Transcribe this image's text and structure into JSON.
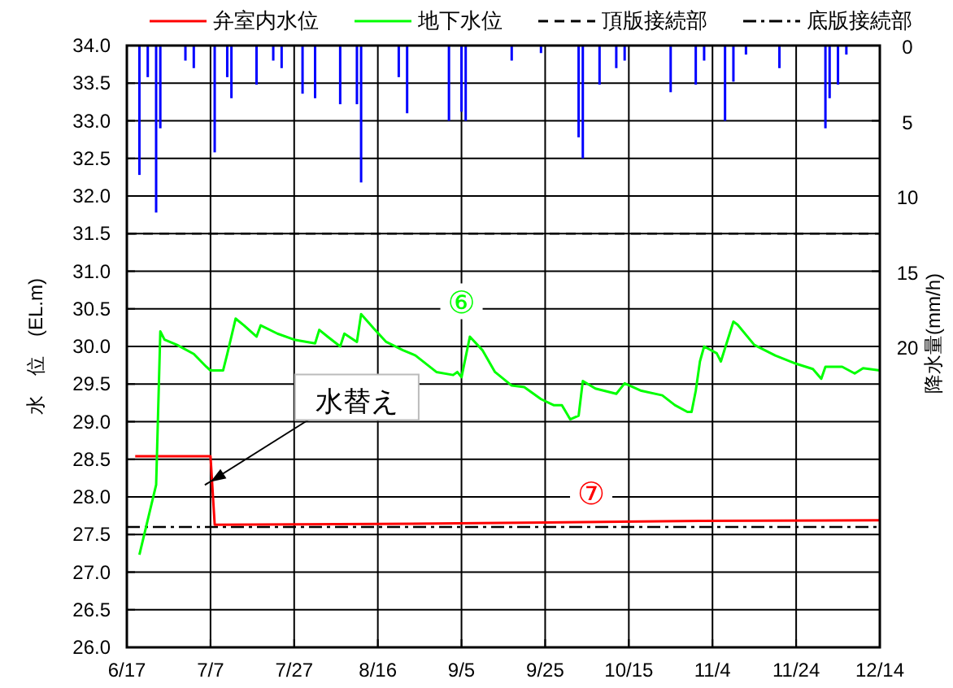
{
  "chart_data": {
    "type": "line",
    "legend": "top",
    "grid": true,
    "ylabel": "水　位　(EL.m)",
    "y2label": "降水量(mm/h)",
    "xlim": [
      "--06-17",
      "--12-14"
    ],
    "xticks": [
      {
        "value": "--06-17",
        "label": "6/17"
      },
      {
        "value": "--07-07",
        "label": "7/7"
      },
      {
        "value": "--07-27",
        "label": "7/27"
      },
      {
        "value": "--08-16",
        "label": "8/16"
      },
      {
        "value": "--09-05",
        "label": "9/5"
      },
      {
        "value": "--09-25",
        "label": "9/25"
      },
      {
        "value": "--10-15",
        "label": "10/15"
      },
      {
        "value": "--11-04",
        "label": "11/4"
      },
      {
        "value": "--11-24",
        "label": "11/24"
      },
      {
        "value": "--12-14",
        "label": "12/14"
      }
    ],
    "ylim": [
      26,
      34
    ],
    "yticks": [
      {
        "value": 26,
        "label": "26.0"
      },
      {
        "value": 26.5,
        "label": "26.5"
      },
      {
        "value": 27,
        "label": "27.0"
      },
      {
        "value": 27.5,
        "label": "27.5"
      },
      {
        "value": 28,
        "label": "28.0"
      },
      {
        "value": 28.5,
        "label": "28.5"
      },
      {
        "value": 29,
        "label": "29.0"
      },
      {
        "value": 29.5,
        "label": "29.5"
      },
      {
        "value": 30,
        "label": "30.0"
      },
      {
        "value": 30.5,
        "label": "30.5"
      },
      {
        "value": 31,
        "label": "31.0"
      },
      {
        "value": 31.5,
        "label": "31.5"
      },
      {
        "value": 32,
        "label": "32.0"
      },
      {
        "value": 32.5,
        "label": "32.5"
      },
      {
        "value": 33,
        "label": "33.0"
      },
      {
        "value": 33.5,
        "label": "33.5"
      },
      {
        "value": 34,
        "label": "34.0"
      }
    ],
    "y2lim": [
      40,
      0
    ],
    "y2ticks": [
      0,
      5,
      10,
      15,
      20
    ],
    "series": [
      {
        "name": "弁室内水位",
        "color": "#ff0000",
        "line_style": "solid",
        "x": [
          "--06-19",
          "--07-07",
          "--07-08",
          "--08-16",
          "--09-25",
          "--11-01",
          "--12-14"
        ],
        "values": [
          28.54,
          28.54,
          27.63,
          27.64,
          27.66,
          27.68,
          27.69
        ]
      },
      {
        "name": "地下水位",
        "color": "#00ff00",
        "line_style": "solid",
        "x": [
          "--06-20",
          "--06-24",
          "--06-25",
          "--06-26",
          "--06-29",
          "--07-03",
          "--07-06",
          "--07-07",
          "--07-10",
          "--07-11",
          "--07-13",
          "--07-15",
          "--07-18",
          "--07-19",
          "--07-23",
          "--07-27",
          "--08-01",
          "--08-02",
          "--08-04",
          "--08-07",
          "--08-08",
          "--08-11",
          "--08-12",
          "--08-15",
          "--08-18",
          "--08-22",
          "--08-25",
          "--08-30",
          "--09-03",
          "--09-04",
          "--09-05",
          "--09-07",
          "--09-10",
          "--09-13",
          "--09-17",
          "--09-20",
          "--09-24",
          "--09-27",
          "--09-29",
          "--10-01",
          "--10-03",
          "--10-04",
          "--10-07",
          "--10-12",
          "--10-14",
          "--10-18",
          "--10-23",
          "--10-26",
          "--10-29",
          "--10-30",
          "--10-31",
          "--11-01",
          "--11-02",
          "--11-05",
          "--11-06",
          "--11-09",
          "--11-10",
          "--11-14",
          "--11-19",
          "--11-24",
          "--11-28",
          "--11-30",
          "--12-01",
          "--12-05",
          "--12-08",
          "--12-10",
          "--12-14"
        ],
        "values": [
          27.23,
          28.16,
          30.2,
          30.09,
          30.02,
          29.9,
          29.73,
          29.68,
          29.68,
          29.9,
          30.37,
          30.28,
          30.13,
          30.28,
          30.17,
          30.09,
          30.04,
          30.22,
          30.13,
          30.0,
          30.17,
          30.06,
          30.43,
          30.24,
          30.06,
          29.95,
          29.88,
          29.66,
          29.62,
          29.66,
          29.59,
          30.13,
          29.95,
          29.66,
          29.48,
          29.46,
          29.3,
          29.22,
          29.22,
          29.03,
          29.08,
          29.54,
          29.44,
          29.37,
          29.51,
          29.41,
          29.35,
          29.22,
          29.13,
          29.13,
          29.41,
          29.8,
          30.0,
          29.91,
          29.8,
          30.33,
          30.29,
          30.02,
          29.88,
          29.77,
          29.7,
          29.57,
          29.73,
          29.73,
          29.64,
          29.71,
          29.68
        ]
      },
      {
        "type": "bar",
        "axis": "y2",
        "color": "#0000ff",
        "x": [
          "--06-20",
          "--06-22",
          "--06-24",
          "--06-25",
          "--07-01",
          "--07-03",
          "--07-08",
          "--07-11",
          "--07-12",
          "--07-18",
          "--07-22",
          "--07-24",
          "--07-29",
          "--08-01",
          "--08-07",
          "--08-11",
          "--08-12",
          "--08-21",
          "--08-23",
          "--09-02",
          "--09-05",
          "--09-06",
          "--09-17",
          "--09-24",
          "--10-03",
          "--10-04",
          "--10-08",
          "--10-12",
          "--10-14",
          "--10-25",
          "--10-31",
          "--11-02",
          "--11-07",
          "--11-09",
          "--11-12",
          "--11-20",
          "--12-01",
          "--12-02",
          "--12-04",
          "--12-06"
        ],
        "values": [
          8.6,
          2.1,
          11.1,
          5.5,
          1.0,
          1.5,
          7.1,
          2.1,
          3.5,
          2.6,
          1.0,
          1.5,
          3.2,
          3.5,
          3.9,
          3.9,
          9.1,
          2.1,
          4.5,
          5.0,
          4.4,
          5.0,
          1.0,
          0.5,
          6.1,
          7.5,
          2.6,
          1.5,
          1.0,
          3.1,
          2.6,
          1.0,
          5.0,
          2.4,
          0.6,
          1.5,
          5.5,
          3.5,
          2.6,
          0.6
        ]
      }
    ],
    "ref_lines": [
      {
        "axis": "y",
        "value": 31.5,
        "label": "頂版接続部",
        "color": "#000000",
        "line_style": "dashed"
      },
      {
        "axis": "y",
        "value": 27.6,
        "label": "底版接続部",
        "color": "#000000",
        "line_style": "dashdot"
      }
    ],
    "annotations": [
      {
        "text": "⑥",
        "x": "--09-05",
        "y": 30.6
      },
      {
        "text": "⑦",
        "x": "--10-06",
        "y": 28.05
      },
      {
        "text": "水替え",
        "x": "--07-07",
        "y": 28.2
      }
    ]
  }
}
